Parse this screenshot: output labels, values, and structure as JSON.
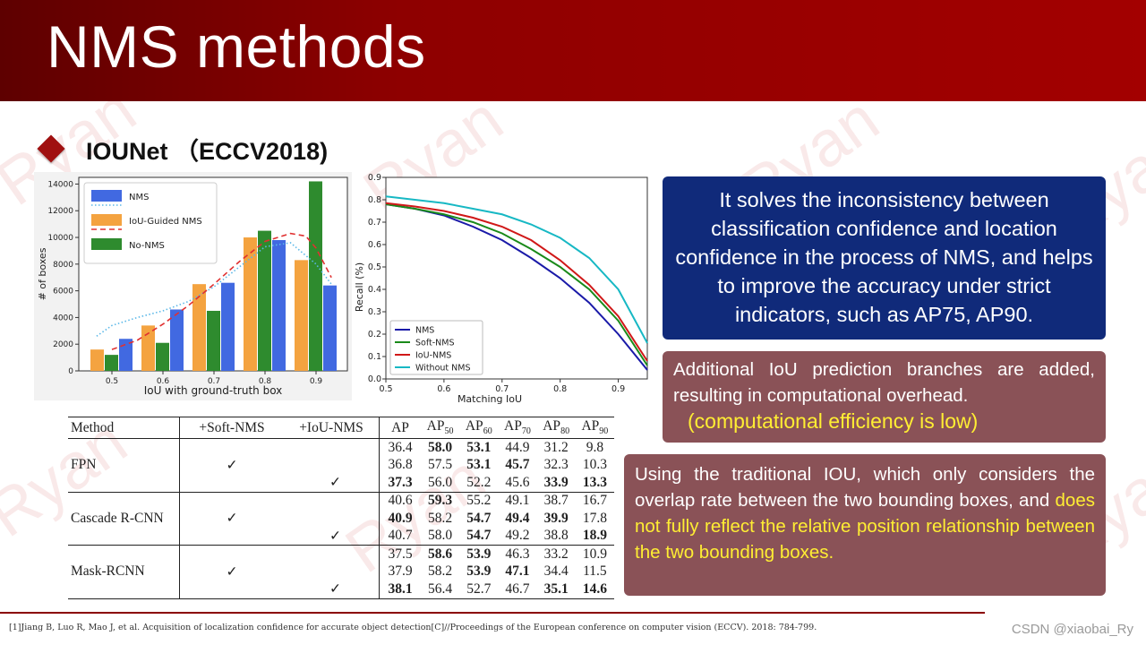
{
  "slide": {
    "title": "NMS methods",
    "subtitle": "IOUNet （ECCV2018)",
    "footnote": "[1]Jiang B, Luo R, Mao J, et al. Acquisition of localization confidence for accurate object detection[C]//Proceedings of the European conference on computer vision (ECCV). 2018: 784-799.",
    "credit": "CSDN @xiaobai_Ry",
    "watermark_text": "Ryan"
  },
  "boxes": {
    "box1_text": "It solves the inconsistency between classification confidence and location confidence in the process of NMS, and helps to improve the accuracy under strict indicators, such as AP75, AP90.",
    "box2_text": "Additional IoU prediction branches are added, resulting in computational overhead.",
    "box2_highlight": "(computational efficiency is low)",
    "box3_text": "Using the traditional IOU, which only considers the overlap rate between the two bounding boxes, and ",
    "box3_highlight": "does not fully reflect the relative position relationship between the two bounding boxes.",
    "colors": {
      "box1_bg": "#102a7a",
      "box2_bg": "#8a5257",
      "highlight": "#ffee33"
    }
  },
  "table": {
    "headers": [
      "Method",
      "+Soft-NMS",
      "+IoU-NMS",
      "AP",
      "AP50",
      "AP60",
      "AP70",
      "AP80",
      "AP90"
    ],
    "check": "✓",
    "groups": [
      {
        "method": "FPN",
        "rows": [
          {
            "soft": false,
            "iou": false,
            "values": [
              "36.4",
              "58.0",
              "53.1",
              "44.9",
              "31.2",
              "9.8"
            ],
            "bold": [
              false,
              true,
              true,
              false,
              false,
              false
            ]
          },
          {
            "soft": true,
            "iou": false,
            "values": [
              "36.8",
              "57.5",
              "53.1",
              "45.7",
              "32.3",
              "10.3"
            ],
            "bold": [
              false,
              false,
              true,
              true,
              false,
              false
            ]
          },
          {
            "soft": false,
            "iou": true,
            "values": [
              "37.3",
              "56.0",
              "52.2",
              "45.6",
              "33.9",
              "13.3"
            ],
            "bold": [
              true,
              false,
              false,
              false,
              true,
              true
            ]
          }
        ]
      },
      {
        "method": "Cascade R-CNN",
        "rows": [
          {
            "soft": false,
            "iou": false,
            "values": [
              "40.6",
              "59.3",
              "55.2",
              "49.1",
              "38.7",
              "16.7"
            ],
            "bold": [
              false,
              true,
              false,
              false,
              false,
              false
            ]
          },
          {
            "soft": true,
            "iou": false,
            "values": [
              "40.9",
              "58.2",
              "54.7",
              "49.4",
              "39.9",
              "17.8"
            ],
            "bold": [
              true,
              false,
              true,
              true,
              true,
              false
            ]
          },
          {
            "soft": false,
            "iou": true,
            "values": [
              "40.7",
              "58.0",
              "54.7",
              "49.2",
              "38.8",
              "18.9"
            ],
            "bold": [
              false,
              false,
              true,
              false,
              false,
              true
            ]
          }
        ]
      },
      {
        "method": "Mask-RCNN",
        "rows": [
          {
            "soft": false,
            "iou": false,
            "values": [
              "37.5",
              "58.6",
              "53.9",
              "46.3",
              "33.2",
              "10.9"
            ],
            "bold": [
              false,
              true,
              true,
              false,
              false,
              false
            ]
          },
          {
            "soft": true,
            "iou": false,
            "values": [
              "37.9",
              "58.2",
              "53.9",
              "47.1",
              "34.4",
              "11.5"
            ],
            "bold": [
              false,
              false,
              true,
              true,
              false,
              false
            ]
          },
          {
            "soft": false,
            "iou": true,
            "values": [
              "38.1",
              "56.4",
              "52.7",
              "46.7",
              "35.1",
              "14.6"
            ],
            "bold": [
              true,
              false,
              false,
              false,
              true,
              true
            ]
          }
        ]
      }
    ]
  },
  "chart_data": [
    {
      "type": "bar",
      "xlabel": "IoU with ground-truth box",
      "ylabel": "# of boxes",
      "categories": [
        "0.5",
        "0.6",
        "0.7",
        "0.8",
        "0.9"
      ],
      "ylim": [
        0,
        14500
      ],
      "yticks": [
        0,
        2000,
        4000,
        6000,
        8000,
        10000,
        12000,
        14000
      ],
      "legend_position": "top-left",
      "series": [
        {
          "name": "NMS",
          "color": "#4169e1",
          "values": [
            2400,
            4600,
            6600,
            9800,
            6400
          ]
        },
        {
          "name": "IoU-Guided NMS",
          "color": "#f4a340",
          "values": [
            1600,
            3400,
            6500,
            10000,
            8300
          ]
        },
        {
          "name": "No-NMS",
          "color": "#2e8b2e",
          "values": [
            1200,
            2100,
            4500,
            10500,
            14200
          ]
        }
      ],
      "lines": [
        {
          "style": "dotted",
          "color": "#5bb8e8",
          "x": [
            0.47,
            0.5,
            0.55,
            0.6,
            0.65,
            0.7,
            0.75,
            0.8,
            0.85,
            0.9,
            0.93
          ],
          "y": [
            2600,
            3400,
            4000,
            4500,
            5200,
            6300,
            7800,
            9300,
            9600,
            8000,
            6500
          ]
        },
        {
          "style": "dashed",
          "color": "#e03030",
          "x": [
            0.5,
            0.55,
            0.6,
            0.65,
            0.7,
            0.75,
            0.8,
            0.85,
            0.88,
            0.9,
            0.93
          ],
          "y": [
            1600,
            2300,
            3500,
            4900,
            6500,
            8200,
            9700,
            10300,
            10100,
            9200,
            7000
          ]
        }
      ]
    },
    {
      "type": "line",
      "xlabel": "Matching IoU",
      "ylabel": "Recall (%)",
      "xlim": [
        0.5,
        0.95
      ],
      "ylim": [
        0.0,
        0.9
      ],
      "xticks": [
        0.5,
        0.6,
        0.7,
        0.8,
        0.9
      ],
      "yticks": [
        0.0,
        0.1,
        0.2,
        0.3,
        0.4,
        0.5,
        0.6,
        0.7,
        0.8,
        0.9
      ],
      "legend_position": "bottom-left",
      "x": [
        0.5,
        0.55,
        0.6,
        0.65,
        0.7,
        0.75,
        0.8,
        0.85,
        0.9,
        0.95
      ],
      "series": [
        {
          "name": "NMS",
          "color": "#1a1aa8",
          "values": [
            0.78,
            0.76,
            0.73,
            0.68,
            0.62,
            0.54,
            0.45,
            0.34,
            0.2,
            0.04
          ]
        },
        {
          "name": "Soft-NMS",
          "color": "#1a8a1a",
          "values": [
            0.78,
            0.76,
            0.735,
            0.7,
            0.65,
            0.58,
            0.5,
            0.4,
            0.26,
            0.06
          ]
        },
        {
          "name": "IoU-NMS",
          "color": "#d01818",
          "values": [
            0.785,
            0.77,
            0.75,
            0.72,
            0.68,
            0.62,
            0.53,
            0.42,
            0.28,
            0.08
          ]
        },
        {
          "name": "Without NMS",
          "color": "#17b8c4",
          "values": [
            0.815,
            0.8,
            0.785,
            0.76,
            0.735,
            0.69,
            0.63,
            0.54,
            0.4,
            0.16
          ]
        }
      ]
    }
  ]
}
